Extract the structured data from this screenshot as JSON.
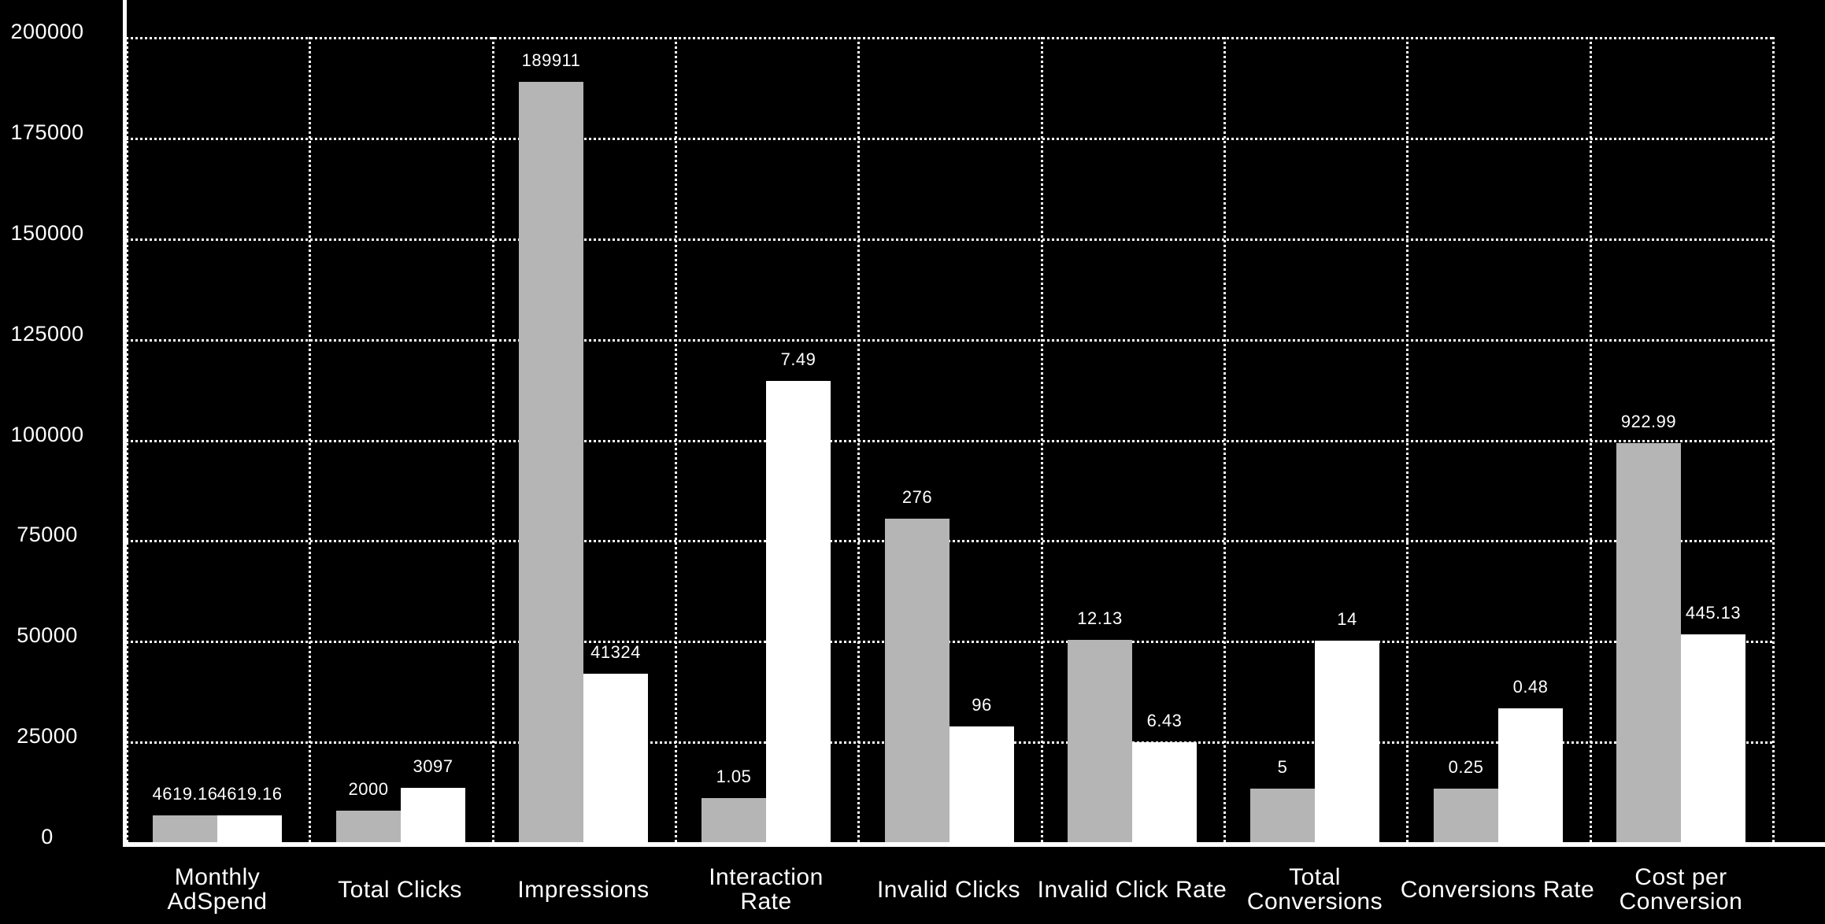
{
  "chart_data": {
    "type": "bar",
    "title": "",
    "xlabel": "",
    "ylabel": "",
    "categories": [
      "Monthly AdSpend",
      "Total Clicks",
      "Impressions",
      "Interaction Rate",
      "Invalid Clicks",
      "Invalid Click Rate",
      "Total Conversions",
      "Conversions Rate",
      "Cost per Conversion"
    ],
    "category_label_lines": [
      [
        "Monthly",
        "AdSpend"
      ],
      [
        "Total Clicks"
      ],
      [
        "Impressions"
      ],
      [
        "Interaction",
        "Rate"
      ],
      [
        "Invalid Clicks"
      ],
      [
        "Invalid Click Rate"
      ],
      [
        "Total",
        "Conversions"
      ],
      [
        "Conversions Rate"
      ],
      [
        "Cost per",
        "Conversion"
      ]
    ],
    "series": [
      {
        "name": "series-1-gray",
        "color": "#b5b5b5",
        "values": [
          4619.16,
          2000,
          189911,
          1.05,
          276,
          12.13,
          5,
          0.25,
          922.99
        ],
        "labels": [
          "4619.16",
          "2000",
          "189911",
          "1.05",
          "276",
          "12.13",
          "5",
          "0.25",
          "922.99"
        ],
        "display_height_frac_of_yaxis": [
          0.0335,
          0.0394,
          0.9446,
          0.0544,
          0.4013,
          0.2509,
          0.0667,
          0.0662,
          0.496
        ]
      },
      {
        "name": "series-2-white",
        "color": "#ffffff",
        "values": [
          4619.16,
          3097,
          41324,
          7.49,
          96,
          6.43,
          14,
          0.48,
          445.13
        ],
        "labels": [
          "4619.16",
          "3097",
          "41324",
          "7.49",
          "96",
          "6.43",
          "14",
          "0.48",
          "445.13"
        ],
        "display_height_frac_of_yaxis": [
          0.0335,
          0.0677,
          0.2091,
          0.5727,
          0.144,
          0.1238,
          0.2502,
          0.1661,
          0.258
        ]
      }
    ],
    "ylim": [
      0,
      200000
    ],
    "yticks": [
      0,
      25000,
      50000,
      75000,
      100000,
      125000,
      150000,
      175000,
      200000
    ],
    "ytick_labels": [
      "0",
      "25000",
      "50000",
      "75000",
      "100000",
      "125000",
      "150000",
      "175000",
      "200000"
    ],
    "grid": "dotted horizontal gridlines at each y tick and dotted vertical lines at category boundaries",
    "legend": "none",
    "note": "Drawn bar heights are not proportional to the printed value labels for most categories; display_height_frac_of_yaxis preserves the rendered height relative to the 0-200000 axis."
  },
  "colors": {
    "background": "#000000",
    "axis": "#ffffff",
    "gridline": "#ffffff",
    "text": "#ffffff",
    "bar_gray": "#b5b5b5",
    "bar_white": "#ffffff"
  }
}
